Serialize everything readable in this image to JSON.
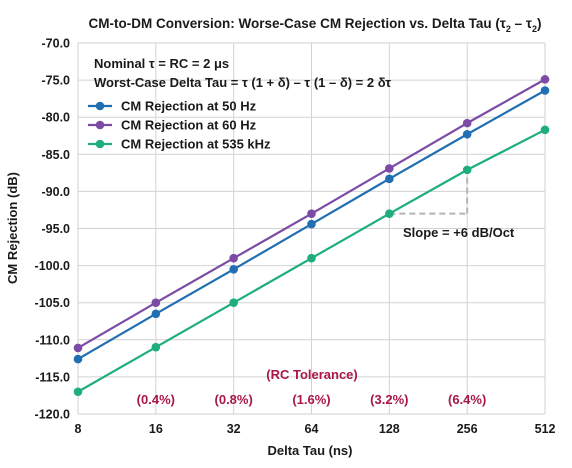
{
  "chart_data": {
    "type": "line",
    "title": "CM-to-DM Conversion: Worse-Case CM Rejection vs. Delta Tau (τ₂ – τ₂)",
    "xlabel": "Delta Tau (ns)",
    "ylabel": "CM Rejection (dB)",
    "x_scale": "log2",
    "x": [
      8,
      16,
      32,
      64,
      128,
      256,
      512
    ],
    "x_tick_labels": [
      "8",
      "16",
      "32",
      "64",
      "128",
      "256",
      "512"
    ],
    "xlim": [
      8,
      512
    ],
    "ylim": [
      -120,
      -70
    ],
    "y_ticks": [
      -70,
      -75,
      -80,
      -85,
      -90,
      -95,
      -100,
      -105,
      -110,
      -115,
      -120
    ],
    "y_tick_labels": [
      "-70.0",
      "-75.0",
      "-80.0",
      "-85.0",
      "-90.0",
      "-95.0",
      "-100.0",
      "-105.0",
      "-110.0",
      "-115.0",
      "-120.0"
    ],
    "grid": true,
    "legend_position": "top-left",
    "series": [
      {
        "name": "CM Rejection at 50 Hz",
        "color": "#1f6fb2",
        "values": [
          -112.6,
          -106.5,
          -100.5,
          -94.4,
          -88.3,
          -82.3,
          -76.4
        ]
      },
      {
        "name": "CM Rejection at 60 Hz",
        "color": "#7b4ba6",
        "values": [
          -111.1,
          -105.0,
          -99.0,
          -93.0,
          -86.9,
          -80.8,
          -74.9
        ]
      },
      {
        "name": "CM Rejection at 535 kHz",
        "color": "#1eae7e",
        "values": [
          -117.0,
          -111.0,
          -105.0,
          -99.0,
          -93.0,
          -87.1,
          -81.7
        ]
      }
    ],
    "annotations": {
      "nominal": "Nominal τ = RC = 2 μs",
      "worst_case": "Worst-Case Delta Tau = τ (1 + δ) – τ (1 – δ) = 2 δτ",
      "slope": "Slope = +6 dB/Oct",
      "tolerance_header": "(RC Tolerance)",
      "tolerance_labels": [
        "(0.4%)",
        "(0.8%)",
        "(1.6%)",
        "(3.2%)",
        "(6.4%)"
      ],
      "tolerance_at_x": [
        16,
        32,
        64,
        128,
        256
      ],
      "slope_corner": {
        "x_from": 128,
        "x_to": 256,
        "y_low": -93.0,
        "y_high": -87.1
      }
    }
  }
}
